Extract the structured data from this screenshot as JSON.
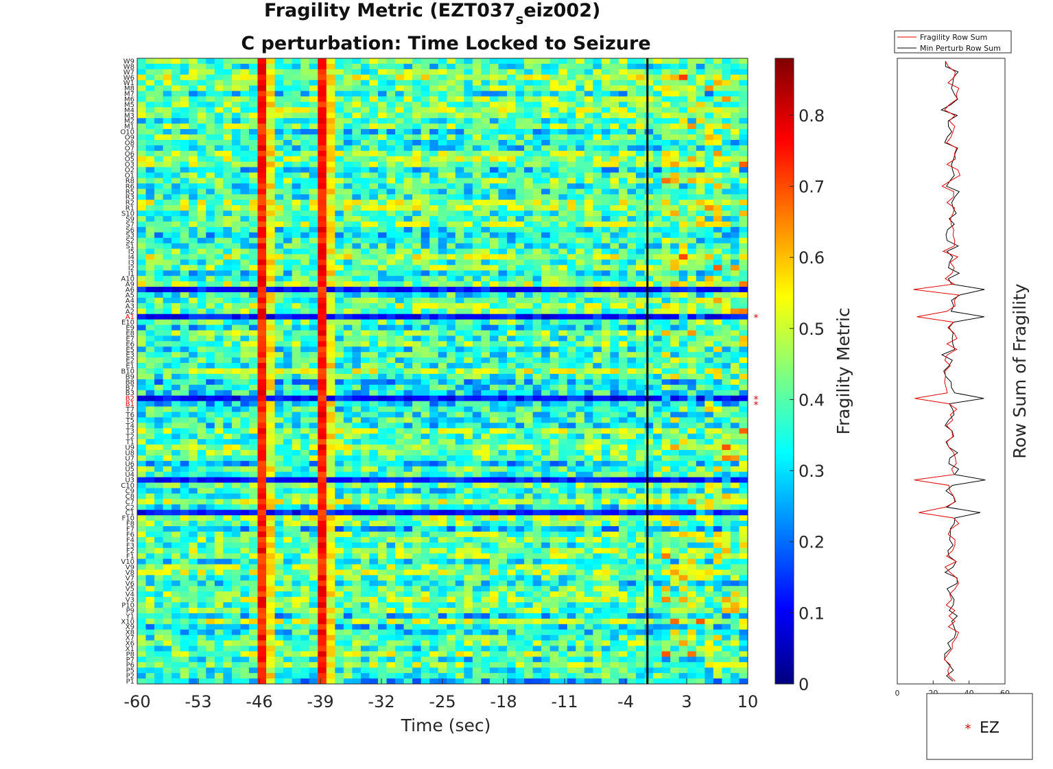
{
  "chart_data": [
    {
      "type": "heatmap",
      "title_main": "Fragility Metric (EZT037",
      "title_sub": "s",
      "title_tail": "eiz002)",
      "subtitle": "C perturbation:  Time Locked to Seizure",
      "xlabel": "Time (sec)",
      "x_ticks": [
        "-60",
        "-53",
        "-46",
        "-39",
        "-32",
        "-25",
        "-18",
        "-11",
        "-4",
        "3",
        "10"
      ],
      "x_tick_values": [
        -60,
        -53,
        -46,
        -39,
        -32,
        -25,
        -18,
        -11,
        -4,
        3,
        10
      ],
      "xlim": [
        -60,
        10
      ],
      "seizure_onset_sec": 0,
      "colorbar_label": "Fragility Metric",
      "colorbar_ticks": [
        "0",
        "0.1",
        "0.2",
        "0.3",
        "0.4",
        "0.5",
        "0.6",
        "0.7",
        "0.8"
      ],
      "colorbar_tick_values": [
        0,
        0.1,
        0.2,
        0.3,
        0.4,
        0.5,
        0.6,
        0.7,
        0.8
      ],
      "colorbar_range": [
        0,
        0.88
      ],
      "colormap": "jet",
      "rows_top_to_bottom": [
        "W9",
        "W8",
        "W7",
        "W6",
        "W1",
        "M8",
        "M7",
        "M6",
        "M5",
        "M4",
        "M3",
        "M2",
        "M1",
        "O10",
        "O9",
        "O8",
        "O7",
        "O6",
        "O5",
        "O3",
        "O2",
        "O1",
        "R8",
        "R6",
        "R5",
        "R3",
        "R2",
        "R1",
        "S10",
        "S9",
        "S7",
        "S6",
        "S3",
        "S2",
        "S1",
        "I5",
        "I4",
        "I3",
        "I2",
        "I1",
        "A10",
        "A9",
        "A6",
        "A5",
        "A4",
        "A3",
        "A2",
        "A1",
        "E10",
        "E9",
        "E8",
        "E7",
        "E6",
        "E5",
        "E3",
        "E2",
        "E1",
        "B10",
        "B9",
        "B8",
        "B7",
        "B3",
        "B2",
        "B1",
        "T7",
        "T6",
        "T5",
        "T4",
        "T3",
        "T2",
        "T1",
        "U9",
        "U8",
        "U7",
        "U6",
        "U5",
        "U4",
        "U3",
        "C10",
        "C9",
        "C8",
        "C7",
        "C2",
        "C1",
        "F10",
        "F8",
        "F7",
        "F6",
        "F4",
        "F3",
        "F2",
        "F1",
        "V10",
        "V9",
        "V8",
        "V7",
        "V6",
        "V5",
        "V4",
        "V3",
        "P10",
        "P9",
        "Y1",
        "X10",
        "X9",
        "X8",
        "X7",
        "X6",
        "X1",
        "P8",
        "P7",
        "P6",
        "P5",
        "P2",
        "P1"
      ],
      "ez_channels": [
        "A1",
        "B2",
        "B1"
      ],
      "notable_columns": {
        "high_fragility_times_sec": [
          -46,
          -39
        ],
        "high_fragility_level": 0.75
      },
      "low_fragility_rows": [
        "A6",
        "B2",
        "U3",
        "C1",
        "A1"
      ]
    },
    {
      "type": "line",
      "ylabel": "Row Sum of Fragility",
      "x_ticks": [
        "0",
        "20",
        "40",
        "60"
      ],
      "x_tick_values": [
        0,
        20,
        40,
        60
      ],
      "xlim": [
        0,
        60
      ],
      "legend_placement": "top",
      "series": [
        {
          "name": "Fragility Row Sum",
          "color": "#e00000"
        },
        {
          "name": "Min Perturb Row Sum",
          "color": "#000000"
        }
      ]
    }
  ],
  "legend_ez": {
    "marker": "*",
    "label": "EZ",
    "color": "#e00000"
  }
}
